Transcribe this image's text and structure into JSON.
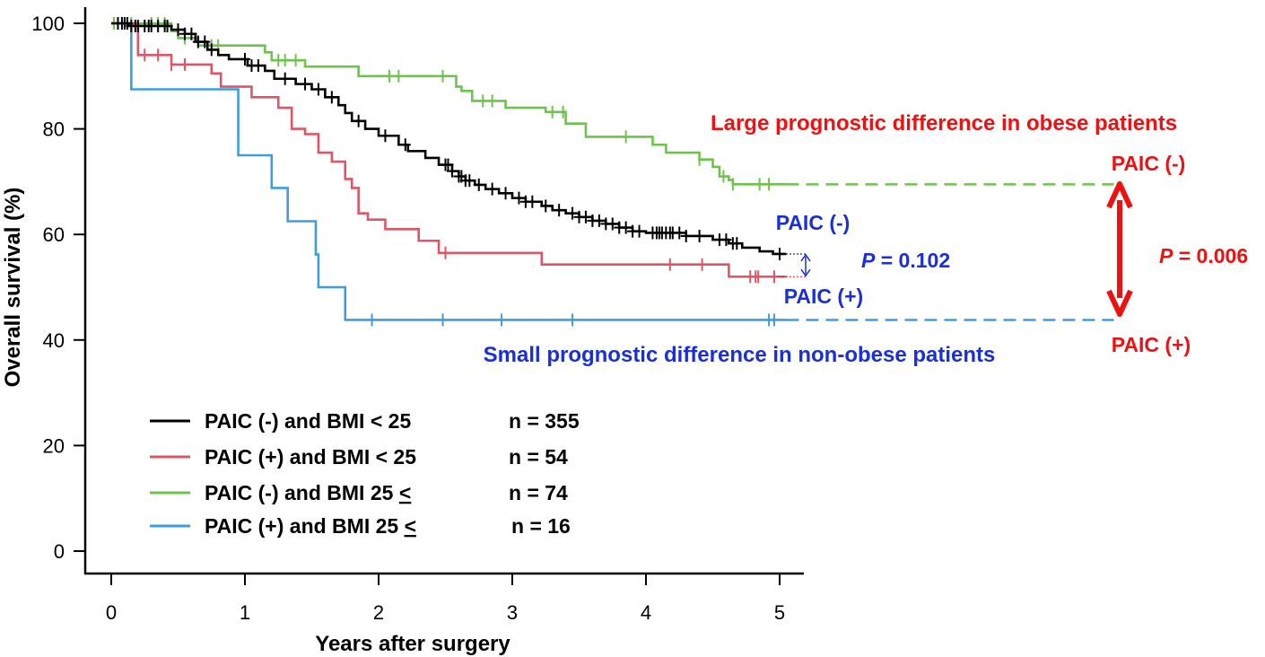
{
  "chart_data": {
    "type": "line",
    "subtype": "kaplan-meier",
    "xlabel": "Years after surgery",
    "ylabel": "Overall survival (%)",
    "xlim": [
      0,
      5
    ],
    "ylim": [
      0,
      100
    ],
    "xticks": [
      "0",
      "1",
      "2",
      "3",
      "4",
      "5"
    ],
    "yticks": [
      "0",
      "20",
      "40",
      "60",
      "80",
      "100"
    ],
    "grid": false,
    "legend_position": "bottom-left",
    "series": [
      {
        "name": "PAIC (-)  and BMI < 25",
        "n_label": "n = 355",
        "color": "#000000",
        "steps": [
          [
            0,
            100
          ],
          [
            0.13,
            99.5
          ],
          [
            0.45,
            98.8
          ],
          [
            0.55,
            98
          ],
          [
            0.63,
            96.5
          ],
          [
            0.72,
            95
          ],
          [
            0.8,
            94
          ],
          [
            0.88,
            93.2
          ],
          [
            1.02,
            92
          ],
          [
            1.15,
            91
          ],
          [
            1.22,
            89.5
          ],
          [
            1.38,
            88.5
          ],
          [
            1.5,
            87.5
          ],
          [
            1.6,
            86
          ],
          [
            1.7,
            84.5
          ],
          [
            1.75,
            83
          ],
          [
            1.8,
            81.5
          ],
          [
            1.9,
            80
          ],
          [
            2.0,
            78.7
          ],
          [
            2.15,
            77
          ],
          [
            2.22,
            75.8
          ],
          [
            2.35,
            74.5
          ],
          [
            2.45,
            73.2
          ],
          [
            2.55,
            72
          ],
          [
            2.6,
            71
          ],
          [
            2.65,
            70.2
          ],
          [
            2.72,
            69.4
          ],
          [
            2.8,
            68.6
          ],
          [
            2.9,
            67.8
          ],
          [
            3.0,
            66.9
          ],
          [
            3.1,
            66.2
          ],
          [
            3.22,
            65.4
          ],
          [
            3.3,
            64.6
          ],
          [
            3.4,
            64
          ],
          [
            3.5,
            63.3
          ],
          [
            3.6,
            62.6
          ],
          [
            3.7,
            62
          ],
          [
            3.8,
            61.3
          ],
          [
            3.9,
            60.6
          ],
          [
            4.0,
            60.3
          ],
          [
            4.3,
            59.7
          ],
          [
            4.5,
            59
          ],
          [
            4.62,
            58.3
          ],
          [
            4.72,
            57.5
          ],
          [
            4.85,
            56.8
          ],
          [
            4.95,
            56.3
          ],
          [
            5.05,
            56.3
          ]
        ],
        "censor": [
          0.05,
          0.08,
          0.1,
          0.12,
          0.15,
          0.18,
          0.2,
          0.25,
          0.28,
          0.3,
          0.35,
          0.4,
          0.42,
          0.5,
          0.55,
          0.6,
          0.65,
          0.7,
          0.75,
          1.0,
          1.05,
          1.1,
          1.3,
          1.45,
          1.55,
          1.65,
          1.85,
          2.05,
          2.2,
          2.5,
          2.52,
          2.55,
          2.6,
          2.62,
          2.65,
          2.68,
          2.75,
          2.85,
          2.95,
          3.05,
          3.1,
          3.15,
          3.25,
          3.35,
          3.45,
          3.5,
          3.55,
          3.6,
          3.65,
          3.7,
          3.75,
          3.8,
          3.85,
          3.9,
          3.95,
          4.05,
          4.08,
          4.1,
          4.12,
          4.15,
          4.18,
          4.2,
          4.25,
          4.3,
          4.4,
          4.55,
          4.6,
          4.65,
          4.68,
          5.0
        ]
      },
      {
        "name": "PAIC (+) and BMI < 25",
        "n_label": "n = 54",
        "color": "#E05565",
        "steps": [
          [
            0,
            100
          ],
          [
            0.2,
            94
          ],
          [
            0.45,
            92.2
          ],
          [
            0.75,
            90.5
          ],
          [
            0.82,
            88
          ],
          [
            1.05,
            86
          ],
          [
            1.25,
            84
          ],
          [
            1.35,
            80
          ],
          [
            1.45,
            79
          ],
          [
            1.55,
            75.5
          ],
          [
            1.65,
            73.8
          ],
          [
            1.75,
            70.5
          ],
          [
            1.8,
            68.8
          ],
          [
            1.85,
            64
          ],
          [
            1.92,
            62.8
          ],
          [
            2.05,
            61
          ],
          [
            2.3,
            58.8
          ],
          [
            2.45,
            56.5
          ],
          [
            3.22,
            54.3
          ],
          [
            4.62,
            52
          ],
          [
            5.05,
            52
          ]
        ],
        "censor": [
          0.25,
          0.35,
          0.45,
          0.55,
          2.5,
          4.18,
          4.42,
          4.78,
          4.82,
          4.84,
          4.96
        ]
      },
      {
        "name": "PAIC (-)  and BMI 25 <u>",
        "n_label": "n = 74",
        "color": "#6CC44A",
        "steps": [
          [
            0,
            100
          ],
          [
            0.45,
            98.5
          ],
          [
            0.5,
            97.2
          ],
          [
            0.65,
            95.8
          ],
          [
            1.15,
            94.5
          ],
          [
            1.2,
            93
          ],
          [
            1.45,
            91.8
          ],
          [
            1.85,
            90
          ],
          [
            2.58,
            88
          ],
          [
            2.62,
            87.2
          ],
          [
            2.7,
            85.3
          ],
          [
            2.95,
            84
          ],
          [
            3.25,
            83.2
          ],
          [
            3.4,
            81
          ],
          [
            3.55,
            78.5
          ],
          [
            4.05,
            77
          ],
          [
            4.15,
            75.5
          ],
          [
            4.4,
            74.2
          ],
          [
            4.5,
            72.8
          ],
          [
            4.55,
            71
          ],
          [
            4.62,
            70.3
          ],
          [
            4.65,
            69.5
          ],
          [
            5.05,
            69.5
          ]
        ],
        "censor": [
          0.02,
          0.05,
          0.1,
          0.15,
          0.3,
          0.35,
          0.4,
          0.55,
          0.75,
          0.8,
          1.25,
          1.3,
          1.38,
          2.08,
          2.15,
          2.48,
          2.78,
          2.85,
          3.3,
          3.38,
          3.85,
          4.4,
          4.58,
          4.65,
          4.85,
          4.92
        ]
      },
      {
        "name": "PAIC (+) and BMI 25 <u>",
        "n_label": "n = 16",
        "color": "#3C9EE0",
        "steps": [
          [
            0,
            100
          ],
          [
            0.15,
            87.5
          ],
          [
            0.95,
            75
          ],
          [
            1.2,
            68.8
          ],
          [
            1.32,
            62.5
          ],
          [
            1.53,
            56.2
          ],
          [
            1.55,
            50
          ],
          [
            1.75,
            43.8
          ],
          [
            5.05,
            43.8
          ]
        ],
        "censor": [
          1.95,
          2.48,
          2.92,
          3.45,
          4.92,
          4.96
        ]
      }
    ],
    "extensions": [
      {
        "from_x": 5.05,
        "to_x": 7.5,
        "y": 69.5,
        "color": "#6CC44A"
      },
      {
        "from_x": 5.05,
        "to_x": 7.5,
        "y": 43.8,
        "color": "#3C9EE0"
      }
    ],
    "annotations": {
      "obese_title": "Large prognostic difference in obese patients",
      "non_obese_title": "Small prognostic difference in non-obese patients",
      "non_obese_neg": "PAIC (-)",
      "non_obese_pos": "PAIC (+)",
      "non_obese_p_symbol": "P",
      "non_obese_p_rest": " = 0.102",
      "obese_neg": "PAIC (-)",
      "obese_pos": "PAIC (+)",
      "obese_p_symbol": "P",
      "obese_p_rest": " = 0.006"
    },
    "colors": {
      "annotation_red": "#EE1111",
      "annotation_blue": "#1A2FD8"
    }
  }
}
